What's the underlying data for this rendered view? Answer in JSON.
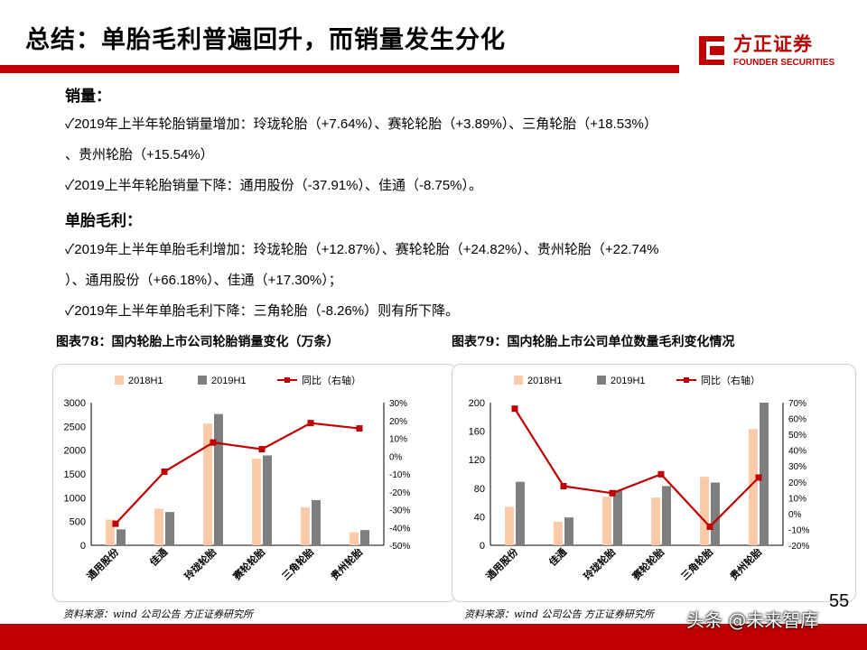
{
  "title": "总结：单胎毛利普遍回升，而销量发生分化",
  "logo": {
    "cn": "方正证券",
    "en": "FOUNDER SECURITIES"
  },
  "sections": [
    {
      "heading": "销量：",
      "bullets": [
        "✓2019年上半年轮胎销量增加：玲珑轮胎（+7.64%）、赛轮轮胎（+3.89%）、三角轮胎（+18.53%）",
        "、贵州轮胎（+15.54%）",
        "✓2019上半年轮胎销量下降：通用股份（-37.91%）、佳通（-8.75%）。"
      ]
    },
    {
      "heading": "单胎毛利：",
      "bullets": [
        "✓2019年上半年单胎毛利增加：玲珑轮胎（+12.87%）、赛轮轮胎（+24.82%）、贵州轮胎（+22.74%",
        "）、通用股份（+66.18%）、佳通（+17.30%）；",
        "✓2019年上半年单胎毛利下降：三角轮胎（-8.26%）则有所下降。"
      ]
    }
  ],
  "captions": [
    "图表78：国内轮胎上市公司轮胎销量变化（万条）",
    "图表79：国内轮胎上市公司单位数量毛利变化情况"
  ],
  "sources": [
    "资料来源：wind 公司公告 方正证券研究所",
    "资料来源：wind 公司公告 方正证券研究所"
  ],
  "page_number": "55",
  "watermark": "头条 @未来智库",
  "colors": {
    "brand": "#c00000",
    "bar2018": "#fbcaa8",
    "bar2019": "#7f7f7f",
    "line": "#c00000"
  },
  "chart_data": [
    {
      "type": "bar",
      "title": "",
      "categories": [
        "通用股份",
        "佳通",
        "玲珑轮胎",
        "赛轮轮胎",
        "三角轮胎",
        "贵州轮胎"
      ],
      "series": [
        {
          "name": "2018H1",
          "kind": "bar",
          "axis": "left",
          "values": [
            540,
            770,
            2560,
            1820,
            800,
            275
          ]
        },
        {
          "name": "2019H1",
          "kind": "bar",
          "axis": "left",
          "values": [
            335,
            700,
            2760,
            1890,
            950,
            320
          ]
        },
        {
          "name": "同比（右轴）",
          "kind": "line",
          "axis": "right",
          "values": [
            -37.91,
            -8.75,
            7.64,
            3.89,
            18.53,
            15.54
          ]
        }
      ],
      "ylim": [
        0,
        3000
      ],
      "yticks": [
        "0",
        "500",
        "1000",
        "1500",
        "2000",
        "2500",
        "3000"
      ],
      "y2lim": [
        -50,
        30
      ],
      "y2ticks": [
        "-50%",
        "-40%",
        "-30%",
        "-20%",
        "-10%",
        "0%",
        "10%",
        "20%",
        "30%"
      ],
      "legend": "top",
      "grid": false
    },
    {
      "type": "bar",
      "title": "",
      "categories": [
        "通用股份",
        "佳通",
        "玲珑轮胎",
        "赛轮轮胎",
        "三角轮胎",
        "贵州轮胎"
      ],
      "series": [
        {
          "name": "2018H1",
          "kind": "bar",
          "axis": "left",
          "values": [
            54,
            33,
            68,
            67,
            96,
            163
          ]
        },
        {
          "name": "2019H1",
          "kind": "bar",
          "axis": "left",
          "values": [
            89,
            39,
            77,
            83,
            88,
            200
          ]
        },
        {
          "name": "同比（右轴）",
          "kind": "line",
          "axis": "right",
          "values": [
            66.18,
            17.3,
            12.87,
            24.82,
            -8.26,
            22.74
          ]
        }
      ],
      "ylim": [
        0,
        200
      ],
      "yticks": [
        "0",
        "40",
        "80",
        "120",
        "160",
        "200"
      ],
      "y2lim": [
        -20,
        70
      ],
      "y2ticks": [
        "-20%",
        "-10%",
        "0%",
        "10%",
        "20%",
        "30%",
        "40%",
        "50%",
        "60%",
        "70%"
      ],
      "legend": "top",
      "grid": false
    }
  ]
}
